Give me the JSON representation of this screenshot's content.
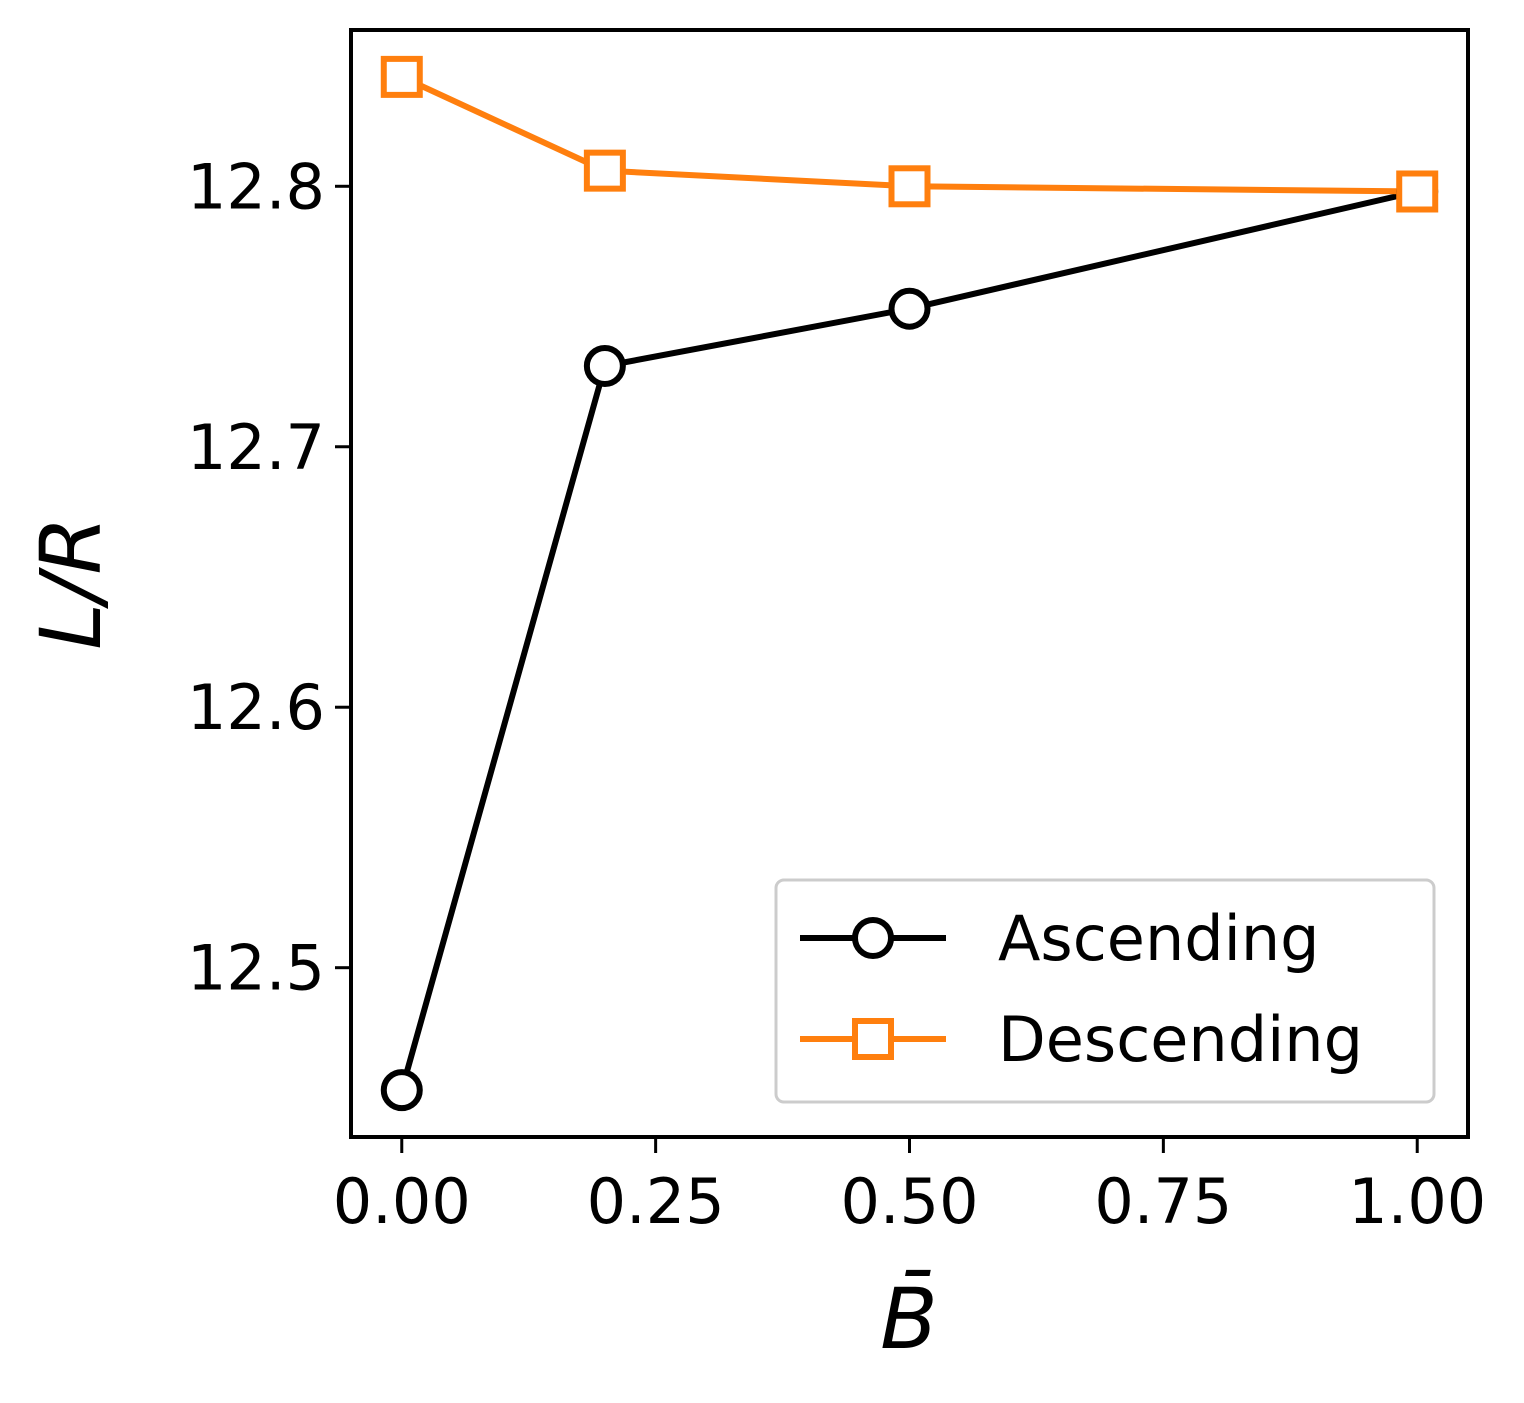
{
  "chart_data": {
    "type": "line",
    "title": "",
    "xlabel": "B̄",
    "ylabel": "L/R",
    "xlim": [
      -0.05,
      1.05
    ],
    "ylim": [
      12.435,
      12.86
    ],
    "x_ticks": [
      "0.00",
      "0.25",
      "0.50",
      "0.75",
      "1.00"
    ],
    "y_ticks": [
      "12.5",
      "12.6",
      "12.7",
      "12.8"
    ],
    "grid": false,
    "legend_position": "lower-right",
    "series": [
      {
        "name": "Ascending",
        "marker": "circle",
        "color": "#000000",
        "x": [
          0.0,
          0.2,
          0.5,
          1.0
        ],
        "y": [
          12.453,
          12.731,
          12.753,
          12.798
        ]
      },
      {
        "name": "Descending",
        "marker": "square",
        "color": "#ff7f0e",
        "x": [
          0.0,
          0.2,
          0.5,
          1.0
        ],
        "y": [
          12.842,
          12.806,
          12.8,
          12.798
        ]
      }
    ]
  }
}
